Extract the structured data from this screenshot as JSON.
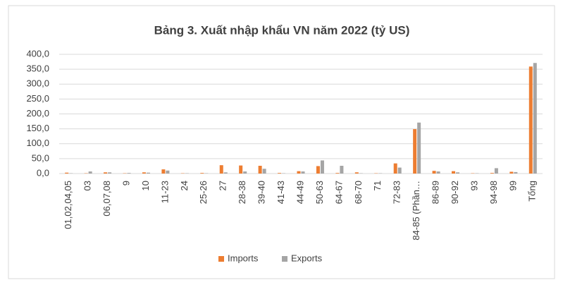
{
  "chart_data": {
    "type": "bar",
    "title": "Bảng 3. Xuất nhập khẩu VN năm 2022 (tỷ US)",
    "categories": [
      "01,02,04,05",
      "03",
      "06,07,08",
      "9",
      "10",
      "11-23",
      "24",
      "25-26",
      "27",
      "28-38",
      "39-40",
      "41-43",
      "44-49",
      "50-63",
      "64-67",
      "68-70",
      "71",
      "72-83",
      "84-85 (Phần…",
      "86-89",
      "90-92",
      "93",
      "94-98",
      "99",
      "Tổng"
    ],
    "series": [
      {
        "name": "Imports",
        "color": "#ed7d31",
        "values": [
          3,
          1,
          4,
          1,
          4,
          14,
          1,
          2,
          28,
          27,
          26,
          2,
          8,
          25,
          2,
          4,
          1,
          34,
          149,
          9,
          8,
          1,
          2,
          6,
          359
        ]
      },
      {
        "name": "Exports",
        "color": "#a5a5a5",
        "values": [
          1,
          7,
          4,
          2,
          3,
          10,
          1,
          1,
          4,
          7,
          16,
          1,
          7,
          44,
          26,
          1,
          1,
          20,
          171,
          7,
          4,
          1,
          18,
          5,
          371
        ]
      }
    ],
    "ylim": [
      0,
      400
    ],
    "yticks": [
      {
        "value": 0,
        "label": "0,0"
      },
      {
        "value": 50,
        "label": "50,0"
      },
      {
        "value": 100,
        "label": "100,0"
      },
      {
        "value": 150,
        "label": "150,0"
      },
      {
        "value": 200,
        "label": "200,0"
      },
      {
        "value": 250,
        "label": "250,0"
      },
      {
        "value": 300,
        "label": "300,0"
      },
      {
        "value": 350,
        "label": "350,0"
      },
      {
        "value": 400,
        "label": "400,0"
      }
    ],
    "grid": true,
    "legend": "bottom"
  }
}
